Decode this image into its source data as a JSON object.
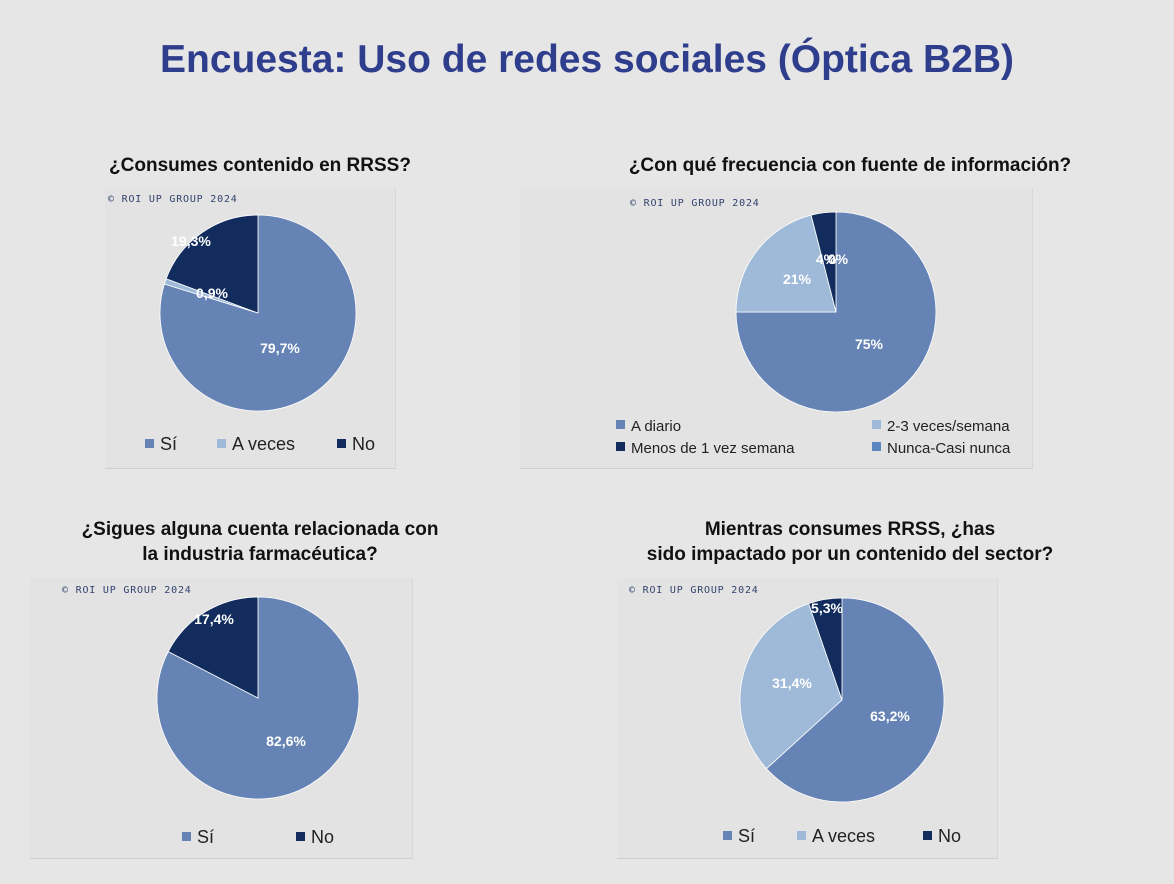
{
  "page_title": "Encuesta: Uso de redes sociales (Óptica B2B)",
  "colors": {
    "title": "#2f3e8c",
    "si": "#6583b4",
    "a_veces": "#9ebad8",
    "no": "#122c5e",
    "nunca": "#5b86bf"
  },
  "chart_data": [
    {
      "type": "pie",
      "title": "¿Consumes contenido en RRSS?",
      "copyright": "© ROI UP GROUP 2024",
      "categories": [
        "Sí",
        "A veces",
        "No"
      ],
      "values": [
        79.7,
        0.9,
        19.3
      ],
      "value_labels": [
        "79,7%",
        "0,9%",
        "19,3%"
      ],
      "colors": [
        "#6583b4",
        "#9ebad8",
        "#122c5e"
      ]
    },
    {
      "type": "pie",
      "title": "¿Con qué frecuencia con fuente de información?",
      "copyright": "© ROI UP GROUP 2024",
      "categories": [
        "A diario",
        "2-3 veces/semana",
        "Menos de 1 vez semana",
        "Nunca-Casi nunca"
      ],
      "values": [
        75,
        21,
        4,
        0
      ],
      "value_labels": [
        "75%",
        "21%",
        "4%",
        "0%"
      ],
      "colors": [
        "#6583b4",
        "#9ebad8",
        "#122c5e",
        "#5b86bf"
      ]
    },
    {
      "type": "pie",
      "title": "¿Sigues alguna cuenta relacionada con la industria farmacéutica?",
      "title_lines": [
        "¿Sigues alguna cuenta relacionada con",
        "la industria farmacéutica?"
      ],
      "copyright": "© ROI UP GROUP 2024",
      "categories": [
        "Sí",
        "No"
      ],
      "values": [
        82.6,
        17.4
      ],
      "value_labels": [
        "82,6%",
        "17,4%"
      ],
      "colors": [
        "#6583b4",
        "#122c5e"
      ]
    },
    {
      "type": "pie",
      "title": "Mientras consumes RRSS, ¿has sido impactado por un contenido del sector?",
      "title_lines": [
        "Mientras consumes RRSS, ¿has",
        "sido impactado por un contenido del sector?"
      ],
      "copyright": "© ROI UP GROUP 2024",
      "categories": [
        "Sí",
        "A veces",
        "No"
      ],
      "values": [
        63.2,
        31.4,
        5.3
      ],
      "value_labels": [
        "63,2%",
        "31,4%",
        "5,3%"
      ],
      "colors": [
        "#6583b4",
        "#9ebad8",
        "#122c5e"
      ]
    }
  ]
}
